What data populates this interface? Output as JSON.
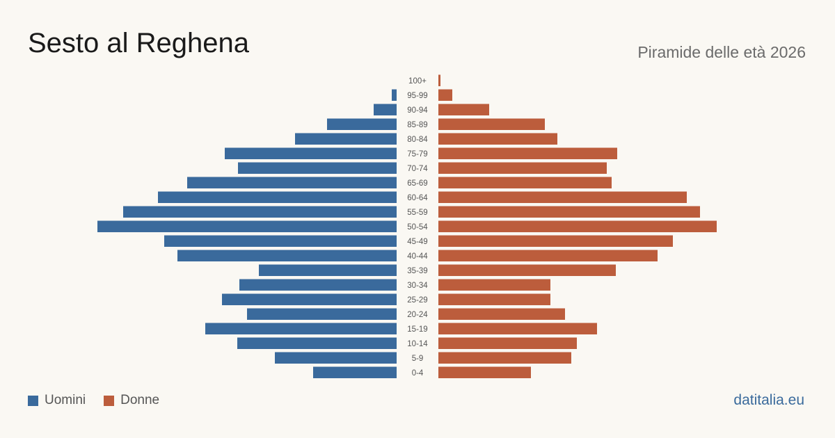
{
  "header": {
    "title": "Sesto al Reghena",
    "subtitle": "Piramide delle età 2026"
  },
  "legend": {
    "male_label": "Uomini",
    "female_label": "Donne"
  },
  "colors": {
    "male": "#3a6a9c",
    "female": "#bc5d3c",
    "background": "#faf8f3"
  },
  "footer": {
    "brand": "datitalia.eu"
  },
  "chart_data": {
    "type": "bar",
    "orientation": "horizontal-pyramid",
    "categories": [
      "100+",
      "95-99",
      "90-94",
      "85-89",
      "80-84",
      "75-79",
      "70-74",
      "65-69",
      "60-64",
      "55-59",
      "50-54",
      "45-49",
      "40-44",
      "35-39",
      "30-34",
      "25-29",
      "20-24",
      "15-19",
      "10-14",
      "5-9",
      "0-4"
    ],
    "series": [
      {
        "name": "Uomini",
        "values": [
          0,
          7,
          33,
          100,
          146,
          247,
          228,
          301,
          343,
          393,
          430,
          334,
          315,
          198,
          226,
          251,
          215,
          275,
          229,
          175,
          120
        ]
      },
      {
        "name": "Donne",
        "values": [
          3,
          20,
          73,
          153,
          171,
          257,
          242,
          249,
          357,
          376,
          400,
          337,
          315,
          255,
          161,
          161,
          182,
          228,
          199,
          191,
          133
        ]
      }
    ],
    "legend_position": "bottom-left",
    "grid": false
  }
}
